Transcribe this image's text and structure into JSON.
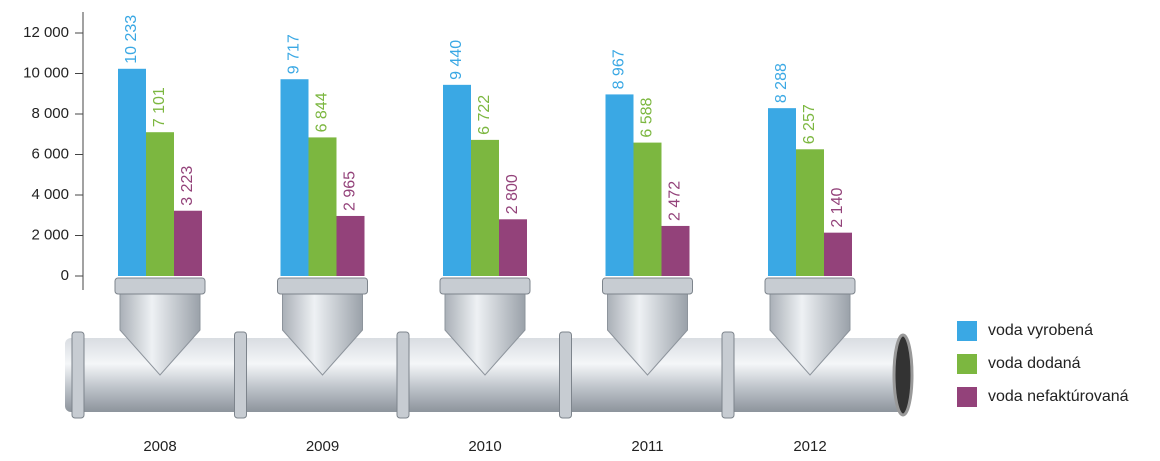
{
  "chart_data": {
    "type": "bar",
    "categories": [
      "2008",
      "2009",
      "2010",
      "2011",
      "2012"
    ],
    "series": [
      {
        "name": "voda vyrobená",
        "color": "#3aa8e4",
        "values": [
          10233,
          9717,
          9440,
          8967,
          8288
        ],
        "value_labels": [
          "10 233",
          "9 717",
          "9 440",
          "8 967",
          "8 288"
        ]
      },
      {
        "name": "voda dodaná",
        "color": "#7cb740",
        "values": [
          7101,
          6844,
          6722,
          6588,
          6257
        ],
        "value_labels": [
          "7 101",
          "6 844",
          "6 722",
          "6 588",
          "6 257"
        ]
      },
      {
        "name": "voda nefaktúrovaná",
        "color": "#93427a",
        "values": [
          3223,
          2965,
          2800,
          2472,
          2140
        ],
        "value_labels": [
          "3 223",
          "2 965",
          "2 800",
          "2 472",
          "2 140"
        ]
      }
    ],
    "ylim": [
      0,
      12000
    ],
    "yticks": [
      0,
      {
        "value": 2000,
        "label": "2 000"
      },
      {
        "value": 4000,
        "label": "4 000"
      },
      {
        "value": 6000,
        "label": "6 000"
      },
      {
        "value": 8000,
        "label": "8 000"
      },
      {
        "value": 10000,
        "label": "10 000"
      },
      {
        "value": 12000,
        "label": "12 000"
      }
    ]
  }
}
